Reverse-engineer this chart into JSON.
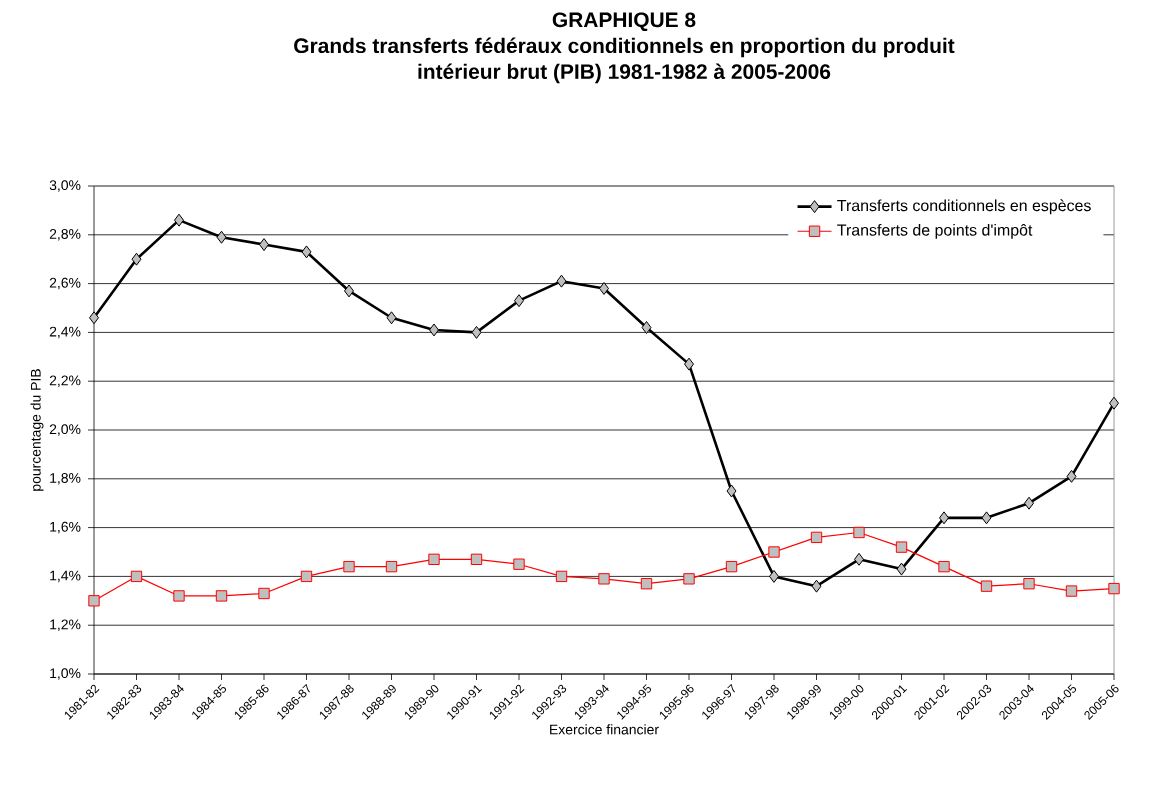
{
  "chart_data": {
    "type": "line",
    "title": "GRAPHIQUE 8\nGrands transferts fédéraux conditionnels en proportion du produit\nintérieur brut (PIB) 1981-1982 à 2005-2006",
    "xlabel": "Exercice financier",
    "ylabel": "pourcentage du PIB",
    "categories": [
      "1981-82",
      "1982-83",
      "1983-84",
      "1984-85",
      "1985-86",
      "1986-87",
      "1987-88",
      "1988-89",
      "1989-90",
      "1990-91",
      "1991-92",
      "1992-93",
      "1993-94",
      "1994-95",
      "1995-96",
      "1996-97",
      "1997-98",
      "1998-99",
      "1999-00",
      "2000-01",
      "2001-02",
      "2002-03",
      "2003-04",
      "2004-05",
      "2005-06"
    ],
    "series": [
      {
        "name": "Transferts conditionnels en espèces",
        "color": "#000000",
        "marker": "diamond",
        "values": [
          2.46,
          2.7,
          2.86,
          2.79,
          2.76,
          2.73,
          2.57,
          2.46,
          2.41,
          2.4,
          2.53,
          2.61,
          2.58,
          2.42,
          2.27,
          1.75,
          1.4,
          1.36,
          1.47,
          1.43,
          1.64,
          1.64,
          1.7,
          1.81,
          2.11
        ]
      },
      {
        "name": "Transferts de points d'impôt",
        "color": "#ff0000",
        "marker": "square",
        "values": [
          1.3,
          1.4,
          1.32,
          1.32,
          1.33,
          1.4,
          1.44,
          1.44,
          1.47,
          1.47,
          1.45,
          1.4,
          1.39,
          1.37,
          1.39,
          1.44,
          1.5,
          1.56,
          1.58,
          1.52,
          1.44,
          1.36,
          1.37,
          1.34,
          1.35
        ]
      }
    ],
    "ylim": [
      1.0,
      3.0
    ],
    "yticks": [
      {
        "value": 1.0,
        "label": "1,0%"
      },
      {
        "value": 1.2,
        "label": "1,2%"
      },
      {
        "value": 1.4,
        "label": "1,4%"
      },
      {
        "value": 1.6,
        "label": "1,6%"
      },
      {
        "value": 1.8,
        "label": "1,8%"
      },
      {
        "value": 2.0,
        "label": "2,0%"
      },
      {
        "value": 2.2,
        "label": "2,2%"
      },
      {
        "value": 2.4,
        "label": "2,4%"
      },
      {
        "value": 2.6,
        "label": "2,6%"
      },
      {
        "value": 2.8,
        "label": "2,8%"
      },
      {
        "value": 3.0,
        "label": "3,0%"
      }
    ],
    "grid": "y",
    "legend": "top right"
  }
}
